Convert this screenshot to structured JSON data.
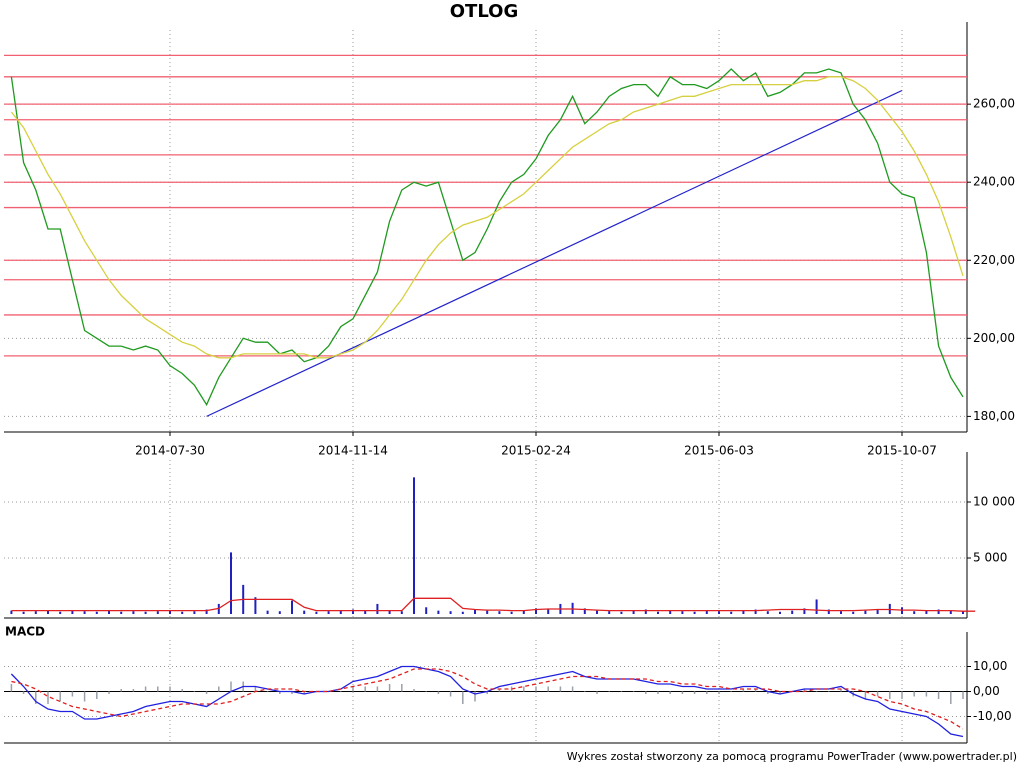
{
  "title": "OTLOG",
  "footer": "Wykres został stworzony za pomocą programu PowerTrader (www.powertrader.pl)",
  "chart_data": [
    {
      "type": "line",
      "categories": [
        null,
        null,
        null,
        null,
        null,
        null,
        null,
        null,
        null,
        null,
        null,
        null,
        null,
        "2014-07-30",
        null,
        null,
        null,
        null,
        null,
        null,
        null,
        null,
        null,
        null,
        null,
        null,
        null,
        null,
        "2014-11-14",
        null,
        null,
        null,
        null,
        null,
        null,
        null,
        null,
        null,
        null,
        null,
        null,
        null,
        null,
        "2015-02-24",
        null,
        null,
        null,
        null,
        null,
        null,
        null,
        null,
        null,
        null,
        null,
        null,
        null,
        null,
        "2015-06-03",
        null,
        null,
        null,
        null,
        null,
        null,
        null,
        null,
        null,
        null,
        null,
        null,
        null,
        null,
        "2015-10-07",
        null,
        null,
        null,
        null,
        null
      ],
      "series": [
        {
          "color": "#1f9a1f",
          "values": [
            267,
            245,
            238,
            228,
            228,
            215,
            202,
            200,
            198,
            198,
            197,
            198,
            197,
            193,
            191,
            188,
            183,
            190,
            195,
            200,
            199,
            199,
            196,
            197,
            194,
            195,
            198,
            203,
            205,
            211,
            217,
            230,
            238,
            240,
            239,
            240,
            230,
            220,
            222,
            228,
            235,
            240,
            242,
            246,
            252,
            256,
            262,
            255,
            258,
            262,
            264,
            265,
            265,
            262,
            267,
            265,
            265,
            264,
            266,
            269,
            266,
            268,
            262,
            263,
            265,
            268,
            268,
            269,
            268,
            260,
            256,
            250,
            240,
            237,
            236,
            222,
            198,
            190,
            185
          ]
        },
        {
          "color": "#d6d040",
          "values": [
            258,
            254,
            248,
            242,
            237,
            231,
            225,
            220,
            215,
            211,
            208,
            205,
            203,
            201,
            199,
            198,
            196,
            195,
            195,
            196,
            196,
            196,
            196,
            196,
            196,
            195,
            195,
            196,
            197,
            199,
            202,
            206,
            210,
            215,
            220,
            224,
            227,
            229,
            230,
            231,
            233,
            235,
            237,
            240,
            243,
            246,
            249,
            251,
            253,
            255,
            256,
            258,
            259,
            260,
            261,
            262,
            262,
            263,
            264,
            265,
            265,
            265,
            265,
            265,
            265,
            266,
            266,
            267,
            267,
            266,
            264,
            261,
            257,
            253,
            248,
            242,
            235,
            226,
            216
          ]
        }
      ],
      "levels": {
        "color": "#f06070",
        "values": [
          272.5,
          267,
          260,
          256,
          247,
          240,
          233.5,
          220,
          215,
          206,
          195.5
        ]
      },
      "trendline": {
        "color": "#2222cc",
        "x": [
          16,
          73
        ],
        "y": [
          180,
          263.5
        ]
      },
      "ylim": [
        176,
        279
      ],
      "yticks": [
        {
          "value": 180,
          "label": "180,00"
        },
        {
          "value": 200,
          "label": "200,00"
        },
        {
          "value": 220,
          "label": "220,00"
        },
        {
          "value": 240,
          "label": "240,00"
        },
        {
          "value": 260,
          "label": "260,00"
        }
      ],
      "grid": true
    },
    {
      "type": "bar",
      "series": [
        {
          "type": "bar",
          "color": "#2020c0",
          "values": [
            300,
            200,
            250,
            300,
            200,
            350,
            250,
            200,
            300,
            200,
            250,
            200,
            250,
            300,
            200,
            250,
            400,
            900,
            5500,
            2600,
            1500,
            300,
            250,
            1200,
            300,
            200,
            250,
            300,
            400,
            350,
            900,
            300,
            250,
            12200,
            600,
            300,
            250,
            200,
            400,
            300,
            250,
            200,
            300,
            500,
            400,
            900,
            1000,
            500,
            300,
            250,
            200,
            300,
            400,
            200,
            300,
            250,
            200,
            300,
            250,
            200,
            300,
            400,
            250,
            200,
            300,
            500,
            1300,
            400,
            250,
            200,
            300,
            400,
            900,
            600,
            250,
            300,
            400,
            300,
            250
          ]
        },
        {
          "type": "line",
          "color": "#e02020",
          "values": [
            300,
            300,
            300,
            300,
            300,
            300,
            300,
            300,
            300,
            300,
            300,
            300,
            300,
            300,
            300,
            300,
            300,
            500,
            1200,
            1300,
            1300,
            1300,
            1300,
            1300,
            600,
            300,
            300,
            300,
            300,
            300,
            300,
            300,
            300,
            1400,
            1400,
            1400,
            1400,
            500,
            400,
            350,
            350,
            300,
            300,
            400,
            450,
            450,
            450,
            400,
            350,
            300,
            300,
            300,
            300,
            300,
            300,
            300,
            300,
            300,
            300,
            300,
            300,
            300,
            350,
            400,
            400,
            400,
            350,
            300,
            300,
            300,
            350,
            400,
            400,
            350,
            350,
            300,
            300,
            300,
            250,
            250
          ]
        }
      ],
      "ylim": [
        0,
        13750
      ],
      "yticks": [
        {
          "value": 5000,
          "label": "5 000"
        },
        {
          "value": 10000,
          "label": "10 000"
        }
      ],
      "grid": true
    },
    {
      "type": "line",
      "title": "MACD",
      "series": [
        {
          "type": "bar",
          "color": "#9aa0a8",
          "values": [
            3,
            -1,
            -5,
            -5,
            -4,
            -2,
            -4,
            -3,
            -1,
            1,
            1,
            2,
            2,
            2,
            1,
            0,
            -1,
            2,
            4,
            4,
            2,
            0,
            -1,
            -1,
            -1,
            0,
            0,
            0,
            2,
            2,
            2,
            3,
            3,
            1,
            0,
            -1,
            -2,
            -5,
            -4,
            -1,
            1,
            2,
            2,
            2,
            2,
            2,
            2,
            0,
            -1,
            0,
            0,
            0,
            -1,
            -1,
            -1,
            -1,
            -1,
            -1,
            -1,
            0,
            1,
            1,
            -1,
            -1,
            0,
            1,
            0,
            0,
            1,
            -2,
            -3,
            -2,
            -3,
            -3,
            -2,
            -2,
            -3,
            -5,
            -3
          ]
        },
        {
          "type": "line",
          "color": "#2020e0",
          "values": [
            7,
            2,
            -4,
            -7,
            -8,
            -8,
            -11,
            -11,
            -10,
            -9,
            -8,
            -6,
            -5,
            -4,
            -4,
            -5,
            -6,
            -3,
            0,
            2,
            2,
            1,
            0,
            0,
            -1,
            0,
            0,
            1,
            4,
            5,
            6,
            8,
            10,
            10,
            9,
            8,
            6,
            1,
            -1,
            0,
            2,
            3,
            4,
            5,
            6,
            7,
            8,
            6,
            5,
            5,
            5,
            5,
            4,
            3,
            3,
            2,
            2,
            1,
            1,
            1,
            2,
            2,
            0,
            -1,
            0,
            1,
            1,
            1,
            2,
            -1,
            -3,
            -4,
            -7,
            -8,
            -9,
            -10,
            -13,
            -17,
            -18
          ]
        },
        {
          "type": "line",
          "dashed": true,
          "color": "#e02020",
          "values": [
            4,
            3,
            1,
            -2,
            -4,
            -6,
            -7,
            -8,
            -9,
            -10,
            -9,
            -8,
            -7,
            -6,
            -5,
            -5,
            -5,
            -5,
            -4,
            -2,
            0,
            1,
            1,
            1,
            0,
            0,
            0,
            1,
            2,
            3,
            4,
            5,
            7,
            9,
            9,
            9,
            8,
            6,
            3,
            1,
            1,
            1,
            2,
            3,
            4,
            5,
            6,
            6,
            6,
            5,
            5,
            5,
            5,
            4,
            4,
            3,
            3,
            2,
            2,
            1,
            1,
            1,
            1,
            0,
            0,
            0,
            1,
            1,
            1,
            1,
            0,
            -2,
            -4,
            -5,
            -7,
            -8,
            -10,
            -12,
            -15
          ]
        }
      ],
      "ylim": [
        -20.6,
        20.6
      ],
      "yticks": [
        {
          "value": 10,
          "label": "10,00"
        },
        {
          "value": 0,
          "label": "0,00"
        },
        {
          "value": -10,
          "label": "-10,00"
        }
      ],
      "grid": true
    }
  ]
}
